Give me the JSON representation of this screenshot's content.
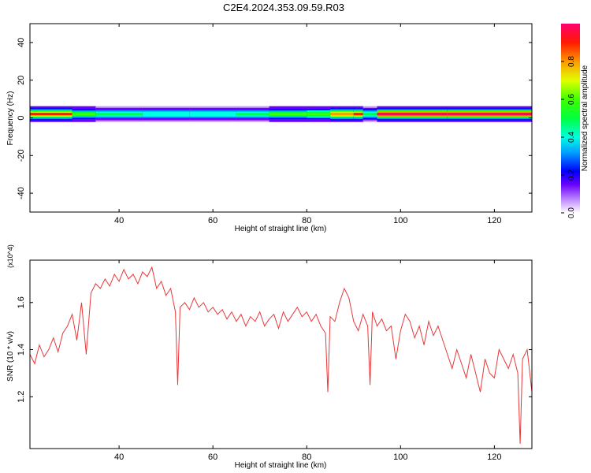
{
  "title": "C2E4.2024.353.09.59.R03",
  "colors": {
    "snr_line": "#e8383a",
    "background": "#ffffff",
    "axes": "#000000"
  },
  "chart_data": [
    {
      "type": "heatmap",
      "name": "spectrogram",
      "xlabel": "Height of straight line (km)",
      "ylabel": "Frequency (Hz)",
      "xlim": [
        21,
        128
      ],
      "ylim": [
        -50,
        50
      ],
      "x_ticks": [
        40,
        60,
        80,
        100,
        120
      ],
      "y_ticks": [
        -40,
        -20,
        0,
        20,
        40
      ],
      "colorbar": {
        "label": "Normalized spectral amplitude",
        "range": [
          0.0,
          1.0
        ],
        "ticks": [
          0.0,
          0.2,
          0.4,
          0.6,
          0.8
        ]
      },
      "band": {
        "center_hz": 2,
        "segments": [
          {
            "x": 21,
            "amp": 0.85
          },
          {
            "x": 30,
            "amp": 0.55
          },
          {
            "x": 35,
            "amp": 0.45
          },
          {
            "x": 45,
            "amp": 0.4
          },
          {
            "x": 55,
            "amp": 0.4
          },
          {
            "x": 65,
            "amp": 0.45
          },
          {
            "x": 72,
            "amp": 0.55
          },
          {
            "x": 80,
            "amp": 0.6
          },
          {
            "x": 85,
            "amp": 0.75
          },
          {
            "x": 90,
            "amp": 0.85
          },
          {
            "x": 92,
            "amp": 0.5
          },
          {
            "x": 95,
            "amp": 0.95
          },
          {
            "x": 110,
            "amp": 0.95
          },
          {
            "x": 128,
            "amp": 0.95
          }
        ]
      }
    },
    {
      "type": "line",
      "name": "snr",
      "xlabel": "Height of straight line (km)",
      "ylabel": "SNR (10 * v/v)",
      "y_multiplier": "(x10^4)",
      "xlim": [
        21,
        128
      ],
      "ylim": [
        0.98,
        1.78
      ],
      "x_ticks": [
        40,
        60,
        80,
        100,
        120
      ],
      "y_ticks": [
        1.2,
        1.4,
        1.6
      ],
      "series": [
        {
          "points": [
            [
              21,
              1.38
            ],
            [
              22,
              1.34
            ],
            [
              23,
              1.42
            ],
            [
              24,
              1.37
            ],
            [
              25,
              1.4
            ],
            [
              26,
              1.45
            ],
            [
              27,
              1.39
            ],
            [
              28,
              1.47
            ],
            [
              29,
              1.5
            ],
            [
              30,
              1.55
            ],
            [
              31,
              1.44
            ],
            [
              32,
              1.6
            ],
            [
              33,
              1.38
            ],
            [
              34,
              1.64
            ],
            [
              35,
              1.68
            ],
            [
              36,
              1.66
            ],
            [
              37,
              1.7
            ],
            [
              38,
              1.67
            ],
            [
              39,
              1.72
            ],
            [
              40,
              1.69
            ],
            [
              41,
              1.74
            ],
            [
              42,
              1.7
            ],
            [
              43,
              1.72
            ],
            [
              44,
              1.68
            ],
            [
              45,
              1.73
            ],
            [
              46,
              1.71
            ],
            [
              47,
              1.75
            ],
            [
              48,
              1.66
            ],
            [
              49,
              1.69
            ],
            [
              50,
              1.63
            ],
            [
              51,
              1.66
            ],
            [
              52,
              1.56
            ],
            [
              52.5,
              1.25
            ],
            [
              53,
              1.58
            ],
            [
              54,
              1.6
            ],
            [
              55,
              1.57
            ],
            [
              56,
              1.62
            ],
            [
              57,
              1.58
            ],
            [
              58,
              1.6
            ],
            [
              59,
              1.56
            ],
            [
              60,
              1.58
            ],
            [
              61,
              1.55
            ],
            [
              62,
              1.57
            ],
            [
              63,
              1.53
            ],
            [
              64,
              1.56
            ],
            [
              65,
              1.52
            ],
            [
              66,
              1.55
            ],
            [
              67,
              1.5
            ],
            [
              68,
              1.54
            ],
            [
              69,
              1.52
            ],
            [
              70,
              1.56
            ],
            [
              71,
              1.5
            ],
            [
              72,
              1.53
            ],
            [
              73,
              1.55
            ],
            [
              74,
              1.49
            ],
            [
              75,
              1.56
            ],
            [
              76,
              1.52
            ],
            [
              77,
              1.55
            ],
            [
              78,
              1.58
            ],
            [
              79,
              1.54
            ],
            [
              80,
              1.56
            ],
            [
              81,
              1.52
            ],
            [
              82,
              1.55
            ],
            [
              83,
              1.5
            ],
            [
              84,
              1.47
            ],
            [
              84.5,
              1.22
            ],
            [
              85,
              1.54
            ],
            [
              86,
              1.52
            ],
            [
              87,
              1.6
            ],
            [
              88,
              1.66
            ],
            [
              89,
              1.62
            ],
            [
              90,
              1.52
            ],
            [
              91,
              1.48
            ],
            [
              92,
              1.55
            ],
            [
              93,
              1.5
            ],
            [
              93.5,
              1.25
            ],
            [
              94,
              1.56
            ],
            [
              95,
              1.5
            ],
            [
              96,
              1.53
            ],
            [
              97,
              1.48
            ],
            [
              98,
              1.5
            ],
            [
              99,
              1.36
            ],
            [
              100,
              1.48
            ],
            [
              101,
              1.55
            ],
            [
              102,
              1.52
            ],
            [
              103,
              1.45
            ],
            [
              104,
              1.5
            ],
            [
              105,
              1.42
            ],
            [
              106,
              1.52
            ],
            [
              107,
              1.46
            ],
            [
              108,
              1.5
            ],
            [
              109,
              1.44
            ],
            [
              110,
              1.38
            ],
            [
              111,
              1.32
            ],
            [
              112,
              1.4
            ],
            [
              113,
              1.34
            ],
            [
              114,
              1.28
            ],
            [
              115,
              1.38
            ],
            [
              116,
              1.3
            ],
            [
              117,
              1.22
            ],
            [
              118,
              1.36
            ],
            [
              119,
              1.3
            ],
            [
              120,
              1.28
            ],
            [
              121,
              1.4
            ],
            [
              122,
              1.36
            ],
            [
              123,
              1.32
            ],
            [
              124,
              1.38
            ],
            [
              125,
              1.3
            ],
            [
              125.5,
              1.0
            ],
            [
              126,
              1.36
            ],
            [
              127,
              1.4
            ],
            [
              128,
              1.22
            ]
          ]
        }
      ]
    }
  ]
}
